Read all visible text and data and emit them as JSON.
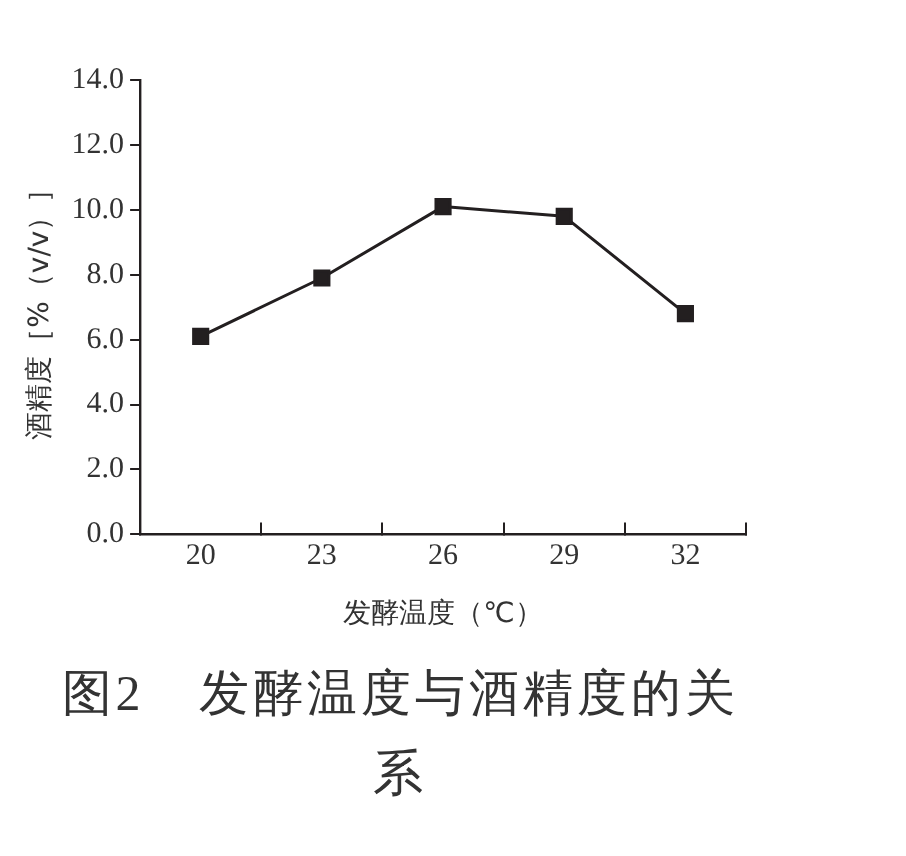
{
  "chart_data": {
    "type": "line",
    "title": "图2　发酵温度与酒精度的关系",
    "xlabel": "发酵温度（℃）",
    "ylabel": "酒精度［%（v/v）］",
    "categories": [
      "20",
      "23",
      "26",
      "29",
      "32"
    ],
    "series": [
      {
        "color": "#231f20",
        "values": [
          6.1,
          7.9,
          10.1,
          9.8,
          6.8
        ]
      }
    ],
    "ylim": [
      0,
      14
    ],
    "yticks": [
      {
        "value": 0,
        "label": "0.0"
      },
      {
        "value": 2,
        "label": "2.0"
      },
      {
        "value": 4,
        "label": "4.0"
      },
      {
        "value": 6,
        "label": "6.0"
      },
      {
        "value": 8,
        "label": "8.0"
      },
      {
        "value": 10,
        "label": "10.0"
      },
      {
        "value": 12,
        "label": "12.0"
      },
      {
        "value": 14,
        "label": "14.0"
      }
    ],
    "grid": false,
    "legend": false,
    "marker": "square",
    "line_style": "solid"
  }
}
